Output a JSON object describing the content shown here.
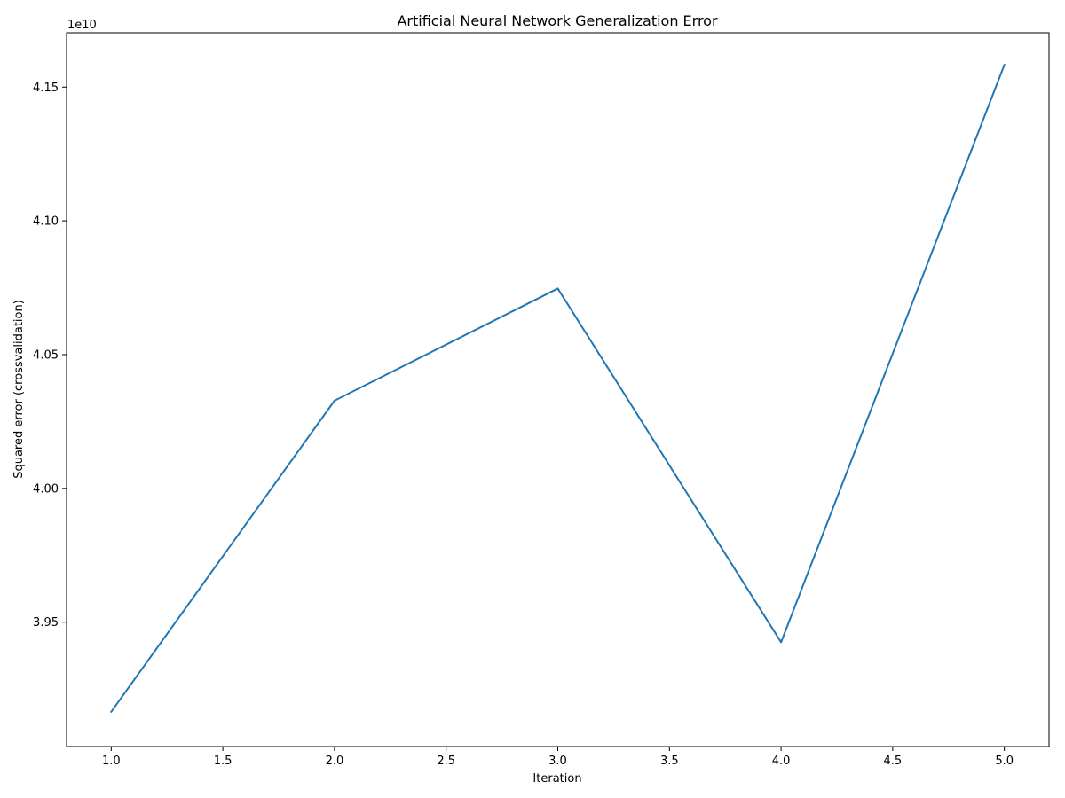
{
  "chart_data": {
    "type": "line",
    "title": "Artificial Neural Network Generalization Error",
    "xlabel": "Iteration",
    "ylabel": "Squared error (crossvalidation)",
    "offset_label": "1e10",
    "xlim": [
      0.8,
      5.2
    ],
    "ylim": [
      3.9035,
      4.1703
    ],
    "x_ticks": [
      1.0,
      1.5,
      2.0,
      2.5,
      3.0,
      3.5,
      4.0,
      4.5,
      5.0
    ],
    "x_tick_labels": [
      "1.0",
      "1.5",
      "2.0",
      "2.5",
      "3.0",
      "3.5",
      "4.0",
      "4.5",
      "5.0"
    ],
    "y_ticks": [
      3.95,
      4.0,
      4.05,
      4.1,
      4.15
    ],
    "y_tick_labels": [
      "3.95",
      "4.00",
      "4.05",
      "4.10",
      "4.15"
    ],
    "grid": false,
    "legend": "none",
    "series": [
      {
        "color": "#1f77b4",
        "x": [
          1,
          2,
          3,
          4,
          5
        ],
        "y": [
          3.9165,
          4.0328,
          4.0747,
          3.9425,
          4.1583
        ]
      }
    ]
  }
}
